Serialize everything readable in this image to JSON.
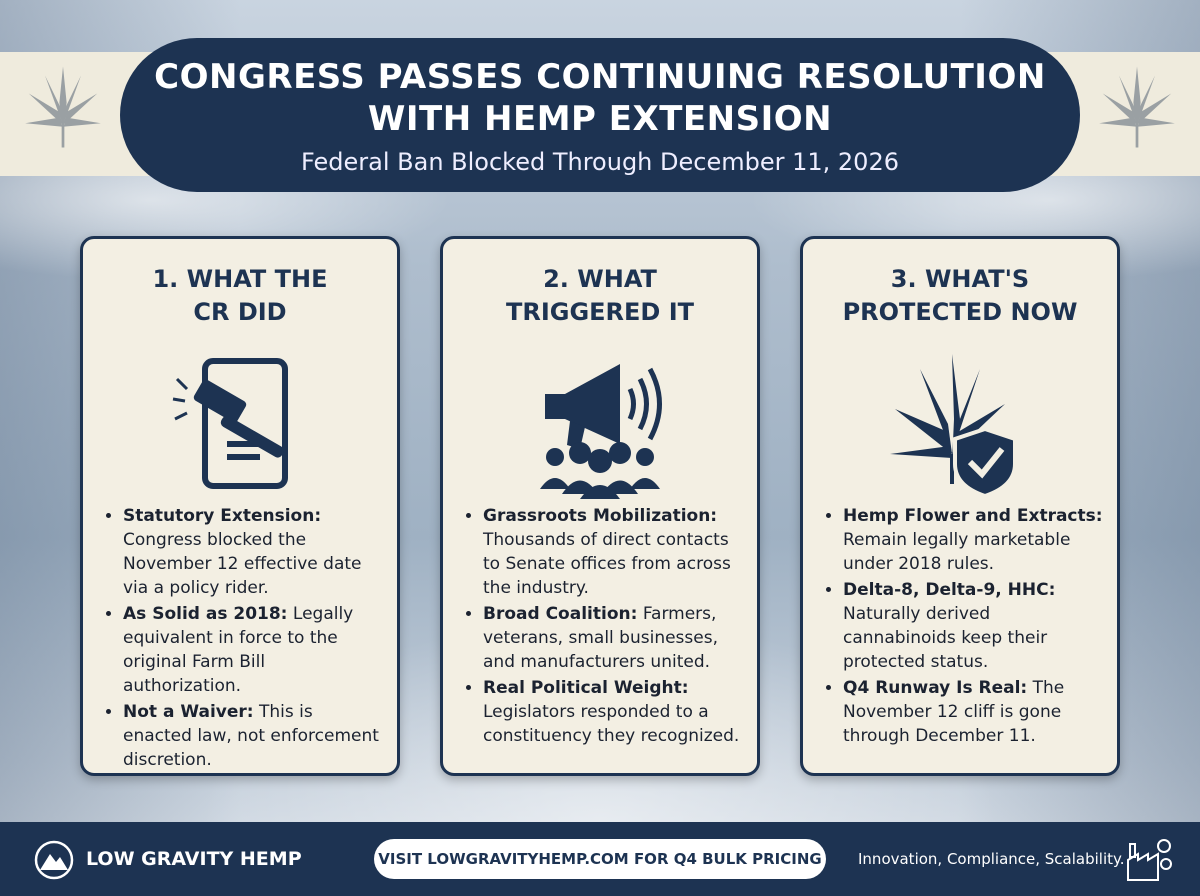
{
  "header": {
    "title_lines": [
      "CONGRESS PASSES CONTINUING RESOLUTION",
      "WITH HEMP EXTENSION"
    ],
    "subtitle": "Federal Ban Blocked Through December 11, 2026"
  },
  "cards": [
    {
      "title_lines": [
        "1. WHAT THE",
        "CR DID"
      ],
      "items": [
        {
          "label": "Statutory Extension:",
          "text": "Congress blocked the November 12 effective date via a policy rider."
        },
        {
          "label": "As Solid as 2018:",
          "text": "Legally equivalent in force to the original Farm Bill authorization."
        },
        {
          "label": "Not a Waiver:",
          "text": "This is enacted law, not enforcement discretion."
        }
      ]
    },
    {
      "title_lines": [
        "2. WHAT",
        "TRIGGERED IT"
      ],
      "items": [
        {
          "label": "Grassroots Mobilization:",
          "text": "Thousands of direct contacts to Senate offices from across the industry."
        },
        {
          "label": "Broad Coalition:",
          "text": "Farmers, veterans, small businesses, and manufacturers united."
        },
        {
          "label": "Real Political Weight:",
          "text": "Legislators responded to a constituency they recognized."
        }
      ]
    },
    {
      "title_lines": [
        "3. WHAT'S",
        "PROTECTED NOW"
      ],
      "items": [
        {
          "label": "Hemp Flower and Extracts:",
          "text": "Remain legally marketable under 2018 rules."
        },
        {
          "label": "Delta-8, Delta-9, HHC:",
          "text": "Naturally derived cannabinoids keep their protected status."
        },
        {
          "label": "Q4 Runway Is Real:",
          "text": "The November 12 cliff is gone through December 11."
        }
      ]
    }
  ],
  "footer": {
    "brand": "LOW GRAVITY HEMP",
    "cta": "VISIT LOWGRAVITYHEMP.COM FOR Q4 BULK PRICING",
    "tagline": "Innovation, Compliance, Scalability."
  }
}
